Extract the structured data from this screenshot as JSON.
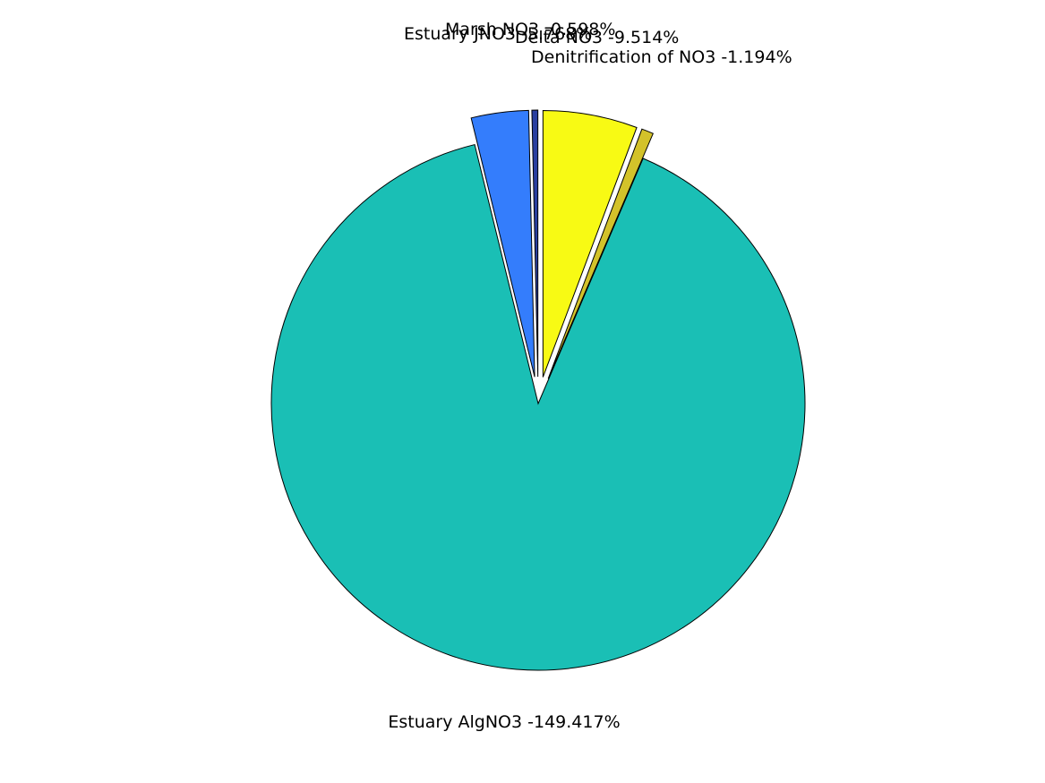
{
  "chart_data": {
    "type": "pie",
    "title": "",
    "exploded": true,
    "slices": [
      {
        "label": "Estuary AlgNO3 -149.417%",
        "percent": 149.417,
        "color": "#1abfb5",
        "exploded": false
      },
      {
        "label": "Estuary JNO3 -5.768%",
        "percent": 5.768,
        "color": "#347dfc",
        "exploded": true
      },
      {
        "label": "Marsh NO3 -0.598%",
        "percent": 0.598,
        "color": "#2a3fa0",
        "exploded": true
      },
      {
        "label": "Delta NO3 -9.514%",
        "percent": 9.514,
        "color": "#f8fa14",
        "exploded": true
      },
      {
        "label": "Denitrification of NO3 -1.194%",
        "percent": 1.194,
        "color": "#d3c22a",
        "exploded": true
      }
    ]
  }
}
